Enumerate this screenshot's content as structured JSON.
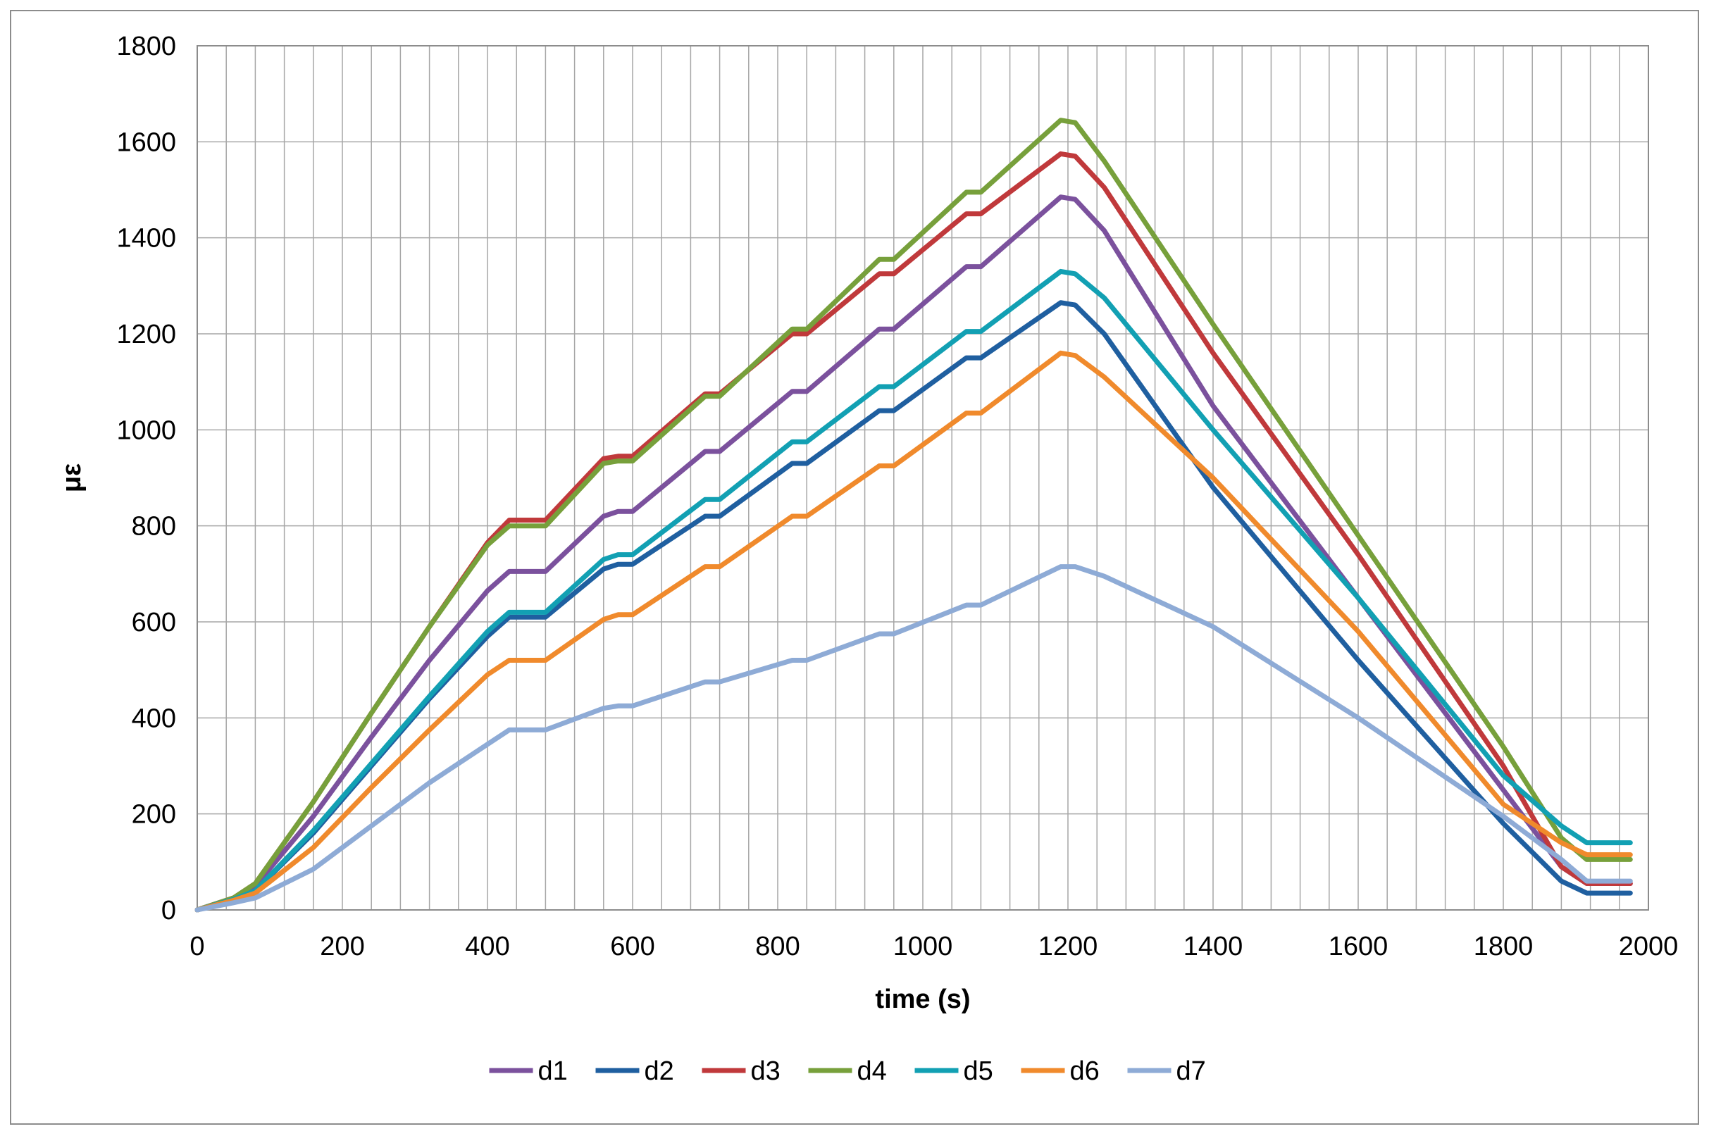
{
  "chart_data": {
    "type": "line",
    "title": "",
    "xlabel": "time (s)",
    "ylabel": "με",
    "xlim": [
      0,
      2000
    ],
    "ylim": [
      0,
      1800
    ],
    "x_major_ticks": [
      0,
      200,
      400,
      600,
      800,
      1000,
      1200,
      1400,
      1600,
      1800,
      2000
    ],
    "y_major_ticks": [
      0,
      200,
      400,
      600,
      800,
      1000,
      1200,
      1400,
      1600,
      1800
    ],
    "x_tick_labels": [
      "0",
      "200",
      "400",
      "600",
      "800",
      "1000",
      "1200",
      "1400",
      "1600",
      "1800",
      "2000"
    ],
    "y_tick_labels": [
      "0",
      "200",
      "400",
      "600",
      "800",
      "1000",
      "1200",
      "1400",
      "1600",
      "1800"
    ],
    "x_minor_step": 40,
    "grid": true,
    "legend_position": "bottom",
    "x": [
      0,
      50,
      80,
      160,
      240,
      320,
      400,
      430,
      480,
      560,
      580,
      600,
      700,
      720,
      820,
      840,
      940,
      960,
      1060,
      1080,
      1190,
      1210,
      1250,
      1400,
      1600,
      1800,
      1880,
      1915,
      1975
    ],
    "series": [
      {
        "name": "d1",
        "color": "#7b519d",
        "values": [
          0,
          25,
          50,
          195,
          360,
          520,
          665,
          705,
          705,
          820,
          830,
          830,
          955,
          955,
          1080,
          1080,
          1210,
          1210,
          1340,
          1340,
          1485,
          1480,
          1415,
          1050,
          650,
          250,
          90,
          55,
          55
        ]
      },
      {
        "name": "d2",
        "color": "#1f5fa0",
        "values": [
          0,
          22,
          40,
          160,
          300,
          440,
          570,
          610,
          610,
          710,
          720,
          720,
          820,
          820,
          930,
          930,
          1040,
          1040,
          1150,
          1150,
          1265,
          1260,
          1200,
          880,
          520,
          180,
          60,
          35,
          35
        ]
      },
      {
        "name": "d3",
        "color": "#c0393b",
        "values": [
          0,
          25,
          55,
          225,
          410,
          590,
          765,
          812,
          812,
          940,
          945,
          945,
          1075,
          1075,
          1200,
          1200,
          1325,
          1325,
          1450,
          1450,
          1575,
          1570,
          1505,
          1160,
          740,
          300,
          90,
          55,
          55
        ]
      },
      {
        "name": "d4",
        "color": "#77a03b",
        "values": [
          0,
          25,
          55,
          225,
          410,
          590,
          760,
          800,
          800,
          930,
          935,
          935,
          1070,
          1070,
          1210,
          1210,
          1355,
          1355,
          1495,
          1495,
          1645,
          1640,
          1560,
          1220,
          780,
          340,
          150,
          105,
          105
        ]
      },
      {
        "name": "d5",
        "color": "#12a0b3",
        "values": [
          0,
          22,
          40,
          165,
          305,
          445,
          580,
          620,
          620,
          730,
          740,
          740,
          855,
          855,
          975,
          975,
          1090,
          1090,
          1205,
          1205,
          1330,
          1325,
          1275,
          1000,
          650,
          280,
          175,
          140,
          140
        ]
      },
      {
        "name": "d6",
        "color": "#f08a2c",
        "values": [
          0,
          20,
          35,
          130,
          255,
          375,
          490,
          520,
          520,
          605,
          615,
          615,
          715,
          715,
          820,
          820,
          925,
          925,
          1035,
          1035,
          1160,
          1155,
          1110,
          900,
          580,
          220,
          140,
          115,
          115
        ]
      },
      {
        "name": "d7",
        "color": "#8eabd6",
        "values": [
          0,
          15,
          25,
          85,
          175,
          265,
          345,
          375,
          375,
          420,
          425,
          425,
          475,
          475,
          520,
          520,
          575,
          575,
          635,
          635,
          715,
          715,
          695,
          590,
          400,
          195,
          105,
          60,
          60
        ]
      }
    ]
  }
}
